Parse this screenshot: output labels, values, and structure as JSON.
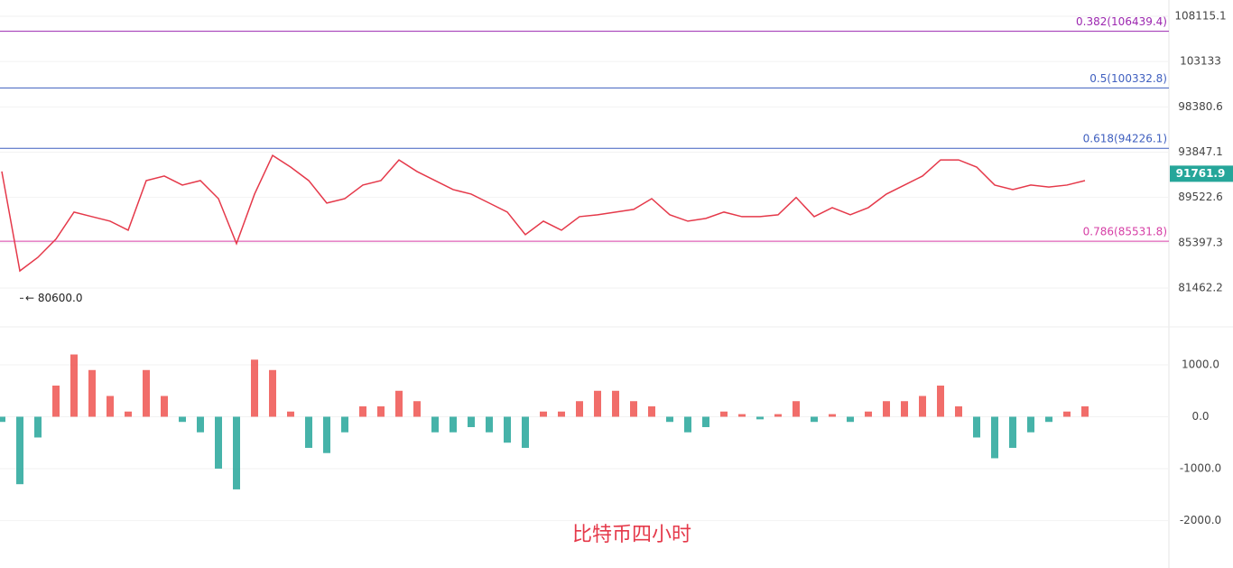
{
  "chart_data": [
    {
      "type": "line",
      "log_scale": true,
      "color": "#e5394a",
      "grid": true,
      "ylim": [
        78380,
        109960
      ],
      "yticks": [
        108115.1,
        103133,
        98380.6,
        93847.1,
        89522.6,
        85397.3,
        81462.2
      ],
      "yticks_labels_note_free": null,
      "values": [
        91975,
        82930,
        84110,
        85720,
        88170,
        87750,
        87340,
        86520,
        91110,
        91540,
        90685,
        91110,
        89410,
        85320,
        89835,
        93530,
        92400,
        91110,
        89000,
        89410,
        90685,
        91110,
        93090,
        91975,
        91110,
        90260,
        89835,
        89000,
        88170,
        86120,
        87340,
        86520,
        87750,
        87920,
        88170,
        88415,
        89410,
        87920,
        87340,
        87590,
        88170,
        87750,
        87750,
        87920,
        89523,
        87750,
        88580,
        87920,
        88580,
        89835,
        90685,
        91540,
        93090,
        93090,
        92400,
        90685,
        90260,
        90685,
        90500,
        90685,
        91110
      ],
      "levels": [
        {
          "value": 106439.4,
          "label": "0.382(106439.4)",
          "color": "#9c27b0"
        },
        {
          "value": 100332.8,
          "label": "0.5(100332.8)",
          "color": "#3f5fbf"
        },
        {
          "value": 94226.1,
          "label": "0.618(94226.1)",
          "color": "#3f5fbf"
        },
        {
          "value": 85531.8,
          "label": "0.786(85531.8)",
          "color": "#d63fa6"
        }
      ],
      "last_price": {
        "value": 91761.9,
        "color": "#26a69a"
      },
      "low_marker": {
        "value": 80600,
        "label": "← 80600.0"
      }
    },
    {
      "type": "bar",
      "title": "比特币四小时",
      "pos_color": "#ef5350",
      "neg_color": "#26a69a",
      "grid": true,
      "y2lim": [
        -2915,
        1505
      ],
      "y2ticks": [
        {
          "value": 1000,
          "label": "1000.0"
        },
        {
          "value": 0,
          "label": "0.0"
        },
        {
          "value": -1000,
          "label": "-1000.0"
        },
        {
          "value": -2000,
          "label": "-2000.0"
        }
      ],
      "values": [
        -100,
        -1300,
        -400,
        600,
        1200,
        900,
        400,
        100,
        900,
        400,
        -100,
        -300,
        -1000,
        -1400,
        1100,
        900,
        100,
        -600,
        -700,
        -300,
        200,
        200,
        500,
        300,
        -300,
        -300,
        -200,
        -300,
        -500,
        -600,
        100,
        100,
        300,
        500,
        500,
        300,
        200,
        -100,
        -300,
        -200,
        100,
        50,
        -50,
        50,
        300,
        -100,
        50,
        -100,
        100,
        300,
        300,
        400,
        600,
        200,
        -400,
        -800,
        -600,
        -300,
        -100,
        100,
        200
      ]
    }
  ]
}
